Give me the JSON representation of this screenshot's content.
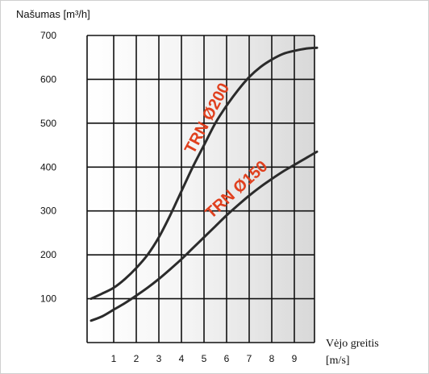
{
  "chart_data": {
    "type": "line",
    "ylabel": "Našumas [m³/h]",
    "xlabel": "Vėjo greitis",
    "xunit": "[m/s]",
    "x_ticks": [
      1,
      2,
      3,
      4,
      5,
      6,
      7,
      8,
      9
    ],
    "y_ticks": [
      100,
      200,
      300,
      400,
      500,
      600,
      700
    ],
    "xlim": [
      0,
      10
    ],
    "ylim": [
      0,
      700
    ],
    "grid": true,
    "series": [
      {
        "name": "TRN Ø200",
        "color": "#2b2b2b",
        "x": [
          0,
          0.5,
          1,
          1.5,
          2,
          2.5,
          3,
          3.5,
          4,
          4.5,
          5,
          5.5,
          6,
          6.5,
          7,
          7.5,
          8,
          8.5,
          9,
          9.5,
          10
        ],
        "y": [
          100,
          112,
          125,
          145,
          170,
          200,
          240,
          290,
          345,
          400,
          450,
          500,
          540,
          575,
          605,
          628,
          645,
          658,
          665,
          670,
          672
        ]
      },
      {
        "name": "TRN Ø150",
        "color": "#2b2b2b",
        "x": [
          0,
          0.5,
          1,
          1.5,
          2,
          2.5,
          3,
          3.5,
          4,
          4.5,
          5,
          5.5,
          6,
          6.5,
          7,
          7.5,
          8,
          8.5,
          9,
          9.5,
          10
        ],
        "y": [
          50,
          60,
          75,
          90,
          107,
          125,
          145,
          167,
          190,
          215,
          240,
          265,
          290,
          313,
          335,
          355,
          373,
          390,
          405,
          420,
          435
        ]
      }
    ]
  }
}
